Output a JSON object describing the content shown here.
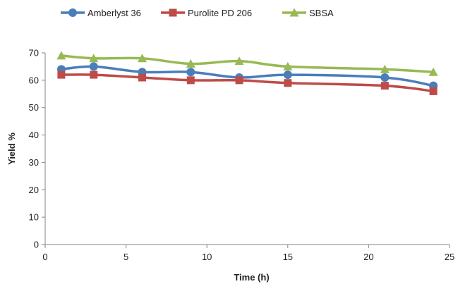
{
  "chart_data": {
    "type": "line",
    "xlabel": "Time (h)",
    "ylabel": "Yield %",
    "xlim": [
      0,
      25
    ],
    "ylim": [
      0,
      70
    ],
    "xticks": [
      0,
      5,
      10,
      15,
      20,
      25
    ],
    "yticks": [
      0,
      10,
      20,
      30,
      40,
      50,
      60,
      70
    ],
    "grid": false,
    "legend_position": "top",
    "series": [
      {
        "name": "Amberlyst 36",
        "color": "#4a7ebb",
        "marker": "circle",
        "x": [
          1,
          3,
          6,
          9,
          12,
          15,
          21,
          24
        ],
        "y": [
          64,
          65,
          63,
          63,
          61,
          62,
          61,
          58
        ]
      },
      {
        "name": "Purolite PD 206",
        "color": "#be4b48",
        "marker": "square",
        "x": [
          1,
          3,
          6,
          9,
          12,
          15,
          21,
          24
        ],
        "y": [
          62,
          62,
          61,
          60,
          60,
          59,
          58,
          56
        ]
      },
      {
        "name": "SBSA",
        "color": "#98b954",
        "marker": "triangle",
        "x": [
          1,
          3,
          6,
          9,
          12,
          15,
          21,
          24
        ],
        "y": [
          69,
          68,
          68,
          66,
          67,
          65,
          64,
          63
        ]
      }
    ]
  }
}
